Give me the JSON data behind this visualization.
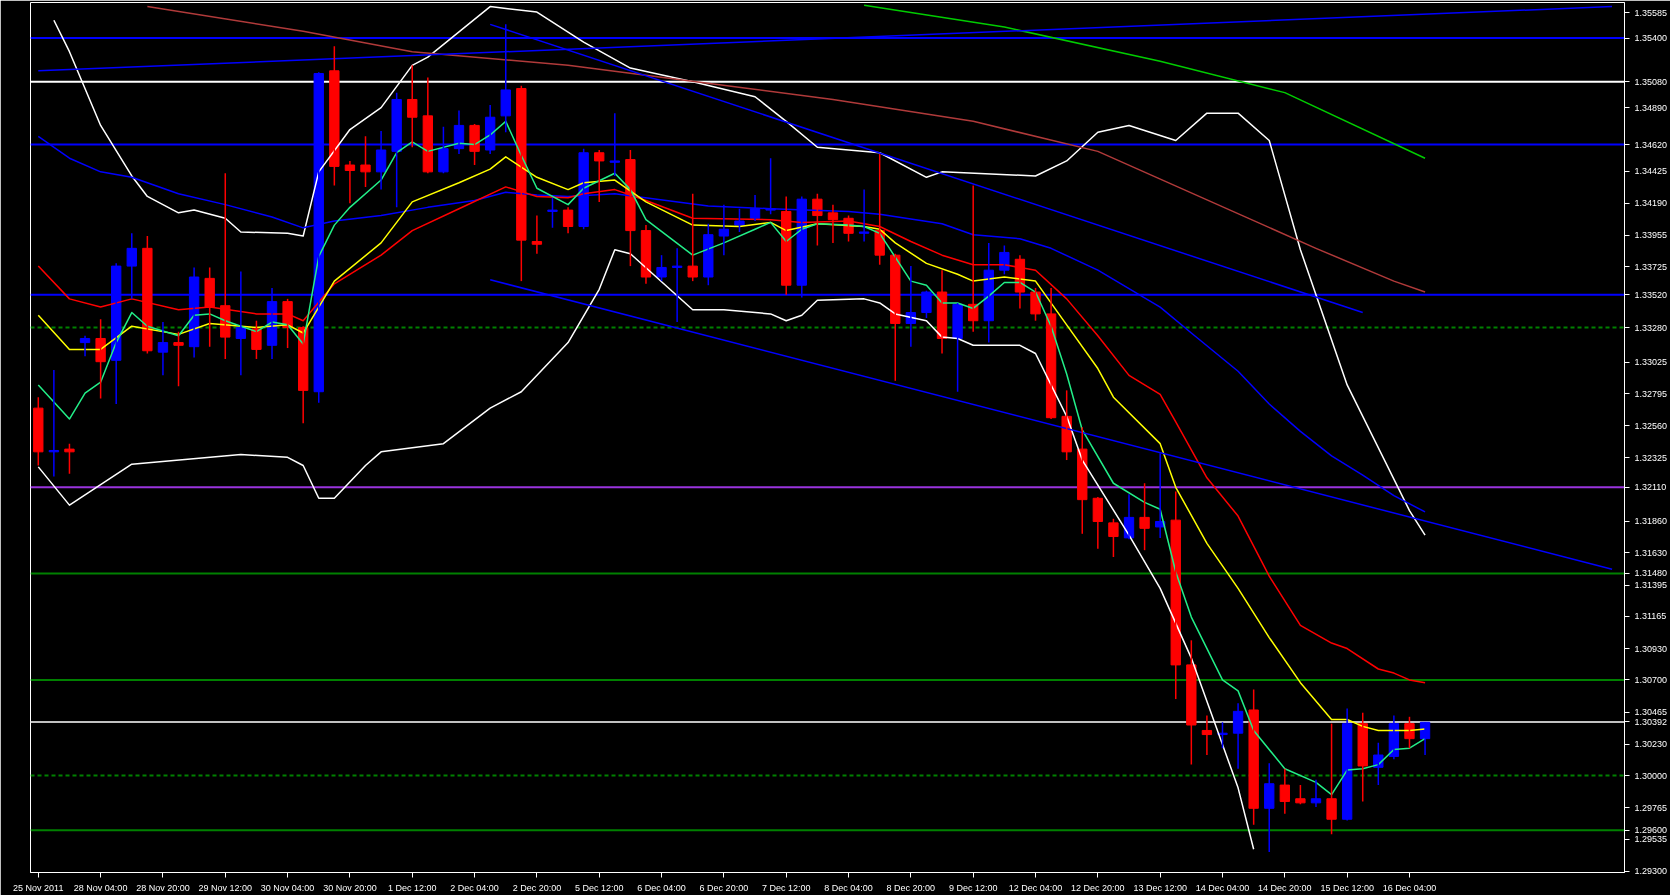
{
  "chart_data": {
    "type": "candlestick",
    "categories": [
      "25 Nov 2011",
      null,
      null,
      null,
      "28 Nov 04:00",
      null,
      null,
      null,
      "28 Nov 20:00",
      null,
      null,
      null,
      "29 Nov 12:00",
      null,
      null,
      null,
      "30 Nov 04:00",
      null,
      null,
      null,
      "30 Nov 20:00",
      null,
      null,
      null,
      "1 Dec 12:00",
      null,
      null,
      null,
      "2 Dec 04:00",
      null,
      null,
      null,
      "2 Dec 20:00",
      null,
      null,
      null,
      "5 Dec 12:00",
      null,
      null,
      null,
      "6 Dec 04:00",
      null,
      null,
      null,
      "6 Dec 20:00",
      null,
      null,
      null,
      "7 Dec 12:00",
      null,
      null,
      null,
      "8 Dec 04:00",
      null,
      null,
      null,
      "8 Dec 20:00",
      null,
      null,
      null,
      "9 Dec 12:00",
      null,
      null,
      null,
      "12 Dec 04:00",
      null,
      null,
      null,
      "12 Dec 20:00",
      null,
      null,
      null,
      "13 Dec 12:00",
      null,
      null,
      null,
      "14 Dec 04:00",
      null,
      null,
      null,
      "14 Dec 20:00",
      null,
      null,
      null,
      "15 Dec 12:00",
      null,
      null,
      null,
      "16 Dec 04:00",
      null,
      null,
      null,
      null,
      null,
      null,
      null,
      null,
      null,
      null,
      null,
      null,
      null
    ],
    "colors": [
      "#ff0000",
      "#0000ff",
      "#ff0000",
      "#0000ff",
      "#ff0000",
      "#0000ff",
      "#0000ff",
      "#ff0000",
      "#0000ff",
      "#ff0000",
      "#0000ff",
      "#ff0000",
      "#ff0000",
      "#0000ff",
      "#ff0000",
      "#0000ff",
      "#ff0000",
      "#ff0000",
      "#0000ff",
      "#ff0000",
      "#ff0000",
      "#ff0000",
      "#0000ff",
      "#0000ff",
      "#ff0000",
      "#ff0000",
      "#0000ff",
      "#0000ff",
      "#ff0000",
      "#0000ff",
      "#0000ff",
      "#ff0000",
      "#ff0000",
      "#0000ff",
      "#ff0000",
      "#0000ff",
      "#ff0000",
      "#0000ff",
      "#ff0000",
      "#ff0000",
      "#0000ff",
      "#0000ff",
      "#ff0000",
      "#0000ff",
      "#0000ff",
      "#0000ff",
      "#0000ff",
      "#0000ff",
      "#ff0000",
      "#0000ff",
      "#ff0000",
      "#ff0000",
      "#ff0000",
      "#0000ff",
      "#ff0000",
      "#ff0000",
      "#0000ff",
      "#0000ff",
      "#ff0000",
      "#0000ff",
      "#ff0000",
      "#0000ff",
      "#0000ff",
      "#ff0000",
      "#ff0000",
      "#ff0000",
      "#ff0000",
      "#ff0000",
      "#ff0000",
      "#ff0000",
      "#0000ff",
      "#ff0000",
      "#0000ff",
      "#ff0000",
      "#ff0000",
      "#ff0000",
      "#0000ff",
      "#0000ff",
      "#ff0000",
      "#0000ff",
      "#ff0000",
      "#ff0000",
      "#0000ff",
      "#ff0000",
      "#0000ff",
      "#ff0000",
      "#0000ff",
      "#0000ff",
      "#ff0000",
      "#0000ff",
      null,
      null,
      null,
      null,
      null,
      null,
      null,
      null,
      null,
      null,
      null,
      null
    ],
    "ohlc": [
      [
        1.3269,
        1.3277,
        1.3227,
        1.3237
      ],
      [
        1.3237,
        1.3297,
        1.3219,
        1.3238
      ],
      [
        1.3239,
        1.3243,
        1.3221,
        1.3237
      ],
      [
        1.3317,
        1.3322,
        1.3307,
        1.332
      ],
      [
        1.332,
        1.3334,
        1.3276,
        1.3303
      ],
      [
        1.3304,
        1.3375,
        1.3272,
        1.3373
      ],
      [
        1.3373,
        1.3397,
        1.3349,
        1.3386
      ],
      [
        1.3386,
        1.3395,
        1.3309,
        1.3311
      ],
      [
        1.331,
        1.3332,
        1.3293,
        1.3317
      ],
      [
        1.3317,
        1.3325,
        1.3285,
        1.3315
      ],
      [
        1.3314,
        1.3372,
        1.3306,
        1.3365
      ],
      [
        1.3364,
        1.3372,
        1.3314,
        1.3343
      ],
      [
        1.3344,
        1.3441,
        1.3305,
        1.3321
      ],
      [
        1.332,
        1.3369,
        1.3293,
        1.3328
      ],
      [
        1.3327,
        1.3333,
        1.3305,
        1.3312
      ],
      [
        1.3315,
        1.3357,
        1.3305,
        1.3347
      ],
      [
        1.3347,
        1.3349,
        1.3313,
        1.3328
      ],
      [
        1.3328,
        1.3329,
        1.3258,
        1.3282
      ],
      [
        1.3281,
        1.3515,
        1.3273,
        1.3514
      ],
      [
        1.3516,
        1.3534,
        1.3432,
        1.3446
      ],
      [
        1.3447,
        1.345,
        1.3419,
        1.3443
      ],
      [
        1.3447,
        1.3468,
        1.3431,
        1.3442
      ],
      [
        1.3442,
        1.3472,
        1.3429,
        1.3458
      ],
      [
        1.3457,
        1.35,
        1.3416,
        1.3495
      ],
      [
        1.3495,
        1.352,
        1.346,
        1.3482
      ],
      [
        1.3483,
        1.3511,
        1.3441,
        1.3442
      ],
      [
        1.3442,
        1.3475,
        1.3441,
        1.3459
      ],
      [
        1.3459,
        1.3487,
        1.3455,
        1.3476
      ],
      [
        1.3476,
        1.3477,
        1.3447,
        1.3457
      ],
      [
        1.3458,
        1.3491,
        1.3455,
        1.3482
      ],
      [
        1.3483,
        1.355,
        1.3471,
        1.3502
      ],
      [
        1.3503,
        1.3505,
        1.3362,
        1.3392
      ],
      [
        1.3391,
        1.341,
        1.3382,
        1.3389
      ],
      [
        1.3413,
        1.3423,
        1.3401,
        1.3414
      ],
      [
        1.3414,
        1.3416,
        1.3397,
        1.3402
      ],
      [
        1.3402,
        1.3459,
        1.34,
        1.3456
      ],
      [
        1.3456,
        1.3458,
        1.342,
        1.345
      ],
      [
        1.3449,
        1.3485,
        1.3439,
        1.345
      ],
      [
        1.3451,
        1.3458,
        1.3373,
        1.3399
      ],
      [
        1.3399,
        1.3403,
        1.336,
        1.3365
      ],
      [
        1.3365,
        1.3381,
        1.3362,
        1.3372
      ],
      [
        1.3372,
        1.3386,
        1.3332,
        1.3373
      ],
      [
        1.3373,
        1.3426,
        1.3362,
        1.3365
      ],
      [
        1.3365,
        1.3404,
        1.3359,
        1.3396
      ],
      [
        1.3395,
        1.3418,
        1.3381,
        1.34
      ],
      [
        1.3403,
        1.3415,
        1.3398,
        1.3406
      ],
      [
        1.3408,
        1.3425,
        1.3406,
        1.3415
      ],
      [
        1.3414,
        1.3452,
        1.3411,
        1.3415
      ],
      [
        1.3413,
        1.3424,
        1.3352,
        1.3359
      ],
      [
        1.3359,
        1.3424,
        1.335,
        1.3422
      ],
      [
        1.3422,
        1.3426,
        1.3388,
        1.341
      ],
      [
        1.3412,
        1.3418,
        1.339,
        1.3407
      ],
      [
        1.3408,
        1.341,
        1.3391,
        1.3397
      ],
      [
        1.3397,
        1.3429,
        1.3391,
        1.3398
      ],
      [
        1.3399,
        1.3455,
        1.3374,
        1.3381
      ],
      [
        1.3381,
        1.3382,
        1.3289,
        1.3331
      ],
      [
        1.3331,
        1.3373,
        1.3314,
        1.3339
      ],
      [
        1.3339,
        1.3355,
        1.3335,
        1.3354
      ],
      [
        1.3354,
        1.337,
        1.3309,
        1.332
      ],
      [
        1.332,
        1.3346,
        1.3281,
        1.3345
      ],
      [
        1.3345,
        1.3432,
        1.3325,
        1.3333
      ],
      [
        1.3333,
        1.339,
        1.3317,
        1.337
      ],
      [
        1.337,
        1.3388,
        1.3367,
        1.3383
      ],
      [
        1.3378,
        1.3381,
        1.3342,
        1.3354
      ],
      [
        1.3354,
        1.3357,
        1.3333,
        1.3338
      ],
      [
        1.3338,
        1.3357,
        1.3261,
        1.3262
      ],
      [
        1.3263,
        1.3282,
        1.3231,
        1.3237
      ],
      [
        1.3239,
        1.3255,
        1.3177,
        1.3202
      ],
      [
        1.3203,
        1.3204,
        1.3166,
        1.3186
      ],
      [
        1.3185,
        1.3188,
        1.316,
        1.3175
      ],
      [
        1.3174,
        1.3206,
        1.3173,
        1.3189
      ],
      [
        1.3189,
        1.3214,
        1.3165,
        1.3181
      ],
      [
        1.3182,
        1.3236,
        1.3174,
        1.3186
      ],
      [
        1.3187,
        1.3208,
        1.3056,
        1.3081
      ],
      [
        1.3081,
        1.3099,
        1.3008,
        1.3037
      ],
      [
        1.3033,
        1.3044,
        1.3015,
        1.303
      ],
      [
        1.303,
        1.3039,
        1.302,
        1.3031
      ],
      [
        1.3031,
        1.3053,
        1.3005,
        1.3047
      ],
      [
        1.3048,
        1.3063,
        1.2964,
        1.2976
      ],
      [
        1.2976,
        1.3009,
        1.2944,
        1.2994
      ],
      [
        1.2993,
        1.3005,
        1.2972,
        1.2981
      ],
      [
        1.2983,
        1.2993,
        1.2979,
        1.298
      ],
      [
        1.298,
        1.2997,
        1.2977,
        1.2983
      ],
      [
        1.2983,
        1.3038,
        1.2957,
        1.2968
      ],
      [
        1.2968,
        1.3049,
        1.2967,
        1.3038
      ],
      [
        1.3038,
        1.3046,
        1.2981,
        1.3007
      ],
      [
        1.3006,
        1.3024,
        1.2993,
        1.3015
      ],
      [
        1.3014,
        1.3044,
        1.3012,
        1.3038
      ],
      [
        1.3038,
        1.3043,
        1.302,
        1.3027
      ],
      [
        1.3027,
        1.3039,
        1.3015,
        1.3039
      ],
      null,
      null,
      null,
      null,
      null,
      null,
      null,
      null,
      null,
      null,
      null,
      null
    ],
    "series": [
      {
        "type": "line",
        "color": "#ffffff",
        "values": [
          null,
          1.3553,
          1.353,
          null,
          1.3476,
          null,
          1.3439,
          1.3424,
          null,
          1.3412,
          1.3414,
          null,
          1.3408,
          1.3398,
          null,
          null,
          1.3397,
          1.3395,
          1.3442,
          null,
          1.3473,
          null,
          1.3489,
          null,
          1.352,
          1.3526,
          null,
          null,
          null,
          1.3563,
          null,
          null,
          1.3559,
          null,
          null,
          1.3537,
          null,
          null,
          1.3518,
          null,
          null,
          null,
          1.3508,
          null,
          null,
          null,
          1.3497,
          null,
          1.3479,
          null,
          1.346,
          null,
          1.3458,
          null,
          1.3456,
          null,
          null,
          1.3438,
          1.3442,
          null,
          null,
          null,
          null,
          null,
          1.3439,
          null,
          1.345,
          null,
          1.3471,
          null,
          1.3476,
          null,
          null,
          1.3465,
          null,
          1.3485,
          null,
          1.3485,
          null,
          1.3465,
          null,
          1.3385,
          null,
          null,
          1.3286,
          null,
          null,
          null,
          1.3194,
          1.3176,
          null,
          null,
          null,
          null,
          null,
          null,
          null,
          null,
          null,
          null,
          null,
          null
        ]
      },
      {
        "type": "line",
        "color": "#ffffff",
        "values": [
          1.3226,
          null,
          1.3198,
          null,
          null,
          null,
          1.3228,
          null,
          null,
          null,
          null,
          null,
          null,
          1.3235,
          null,
          null,
          1.3233,
          1.3227,
          1.3203,
          1.3203,
          null,
          1.3227,
          1.3237,
          null,
          null,
          null,
          1.3243,
          null,
          null,
          1.3269,
          null,
          1.3281,
          null,
          null,
          1.3317,
          null,
          1.3356,
          1.3385,
          1.3382,
          null,
          null,
          null,
          1.3341,
          null,
          1.3341,
          null,
          null,
          1.3338,
          1.3333,
          1.3337,
          1.3348,
          null,
          null,
          1.3349,
          1.3346,
          1.3338,
          null,
          1.3333,
          1.3321,
          1.332,
          1.3315,
          null,
          null,
          1.3315,
          1.3309,
          null,
          1.3263,
          1.3231,
          null,
          null,
          1.3176,
          null,
          1.3137,
          null,
          1.3086,
          null,
          null,
          1.2991,
          1.2946,
          null,
          null,
          null,
          null,
          null,
          null,
          null,
          null,
          null,
          null,
          null,
          null,
          null,
          null,
          null,
          null,
          null,
          null,
          null,
          null,
          null,
          null,
          null
        ]
      },
      {
        "type": "line",
        "color": "#b03a3a",
        "values": [
          null,
          null,
          null,
          null,
          null,
          null,
          null,
          1.3563,
          null,
          null,
          null,
          null,
          null,
          null,
          null,
          null,
          null,
          1.3545,
          null,
          null,
          null,
          null,
          null,
          null,
          1.353,
          null,
          null,
          null,
          null,
          null,
          null,
          null,
          null,
          null,
          1.352,
          null,
          null,
          null,
          null,
          null,
          null,
          null,
          null,
          null,
          null,
          null,
          null,
          null,
          null,
          null,
          null,
          1.3495,
          null,
          null,
          null,
          null,
          null,
          null,
          null,
          null,
          1.3479,
          null,
          null,
          null,
          null,
          null,
          null,
          null,
          1.3457,
          null,
          null,
          null,
          null,
          null,
          null,
          null,
          null,
          null,
          null,
          null,
          null,
          null,
          1.3386,
          null,
          null,
          null,
          null,
          1.3362,
          null,
          1.3354,
          null,
          null,
          null,
          null,
          null,
          null,
          null,
          null,
          null,
          null,
          null,
          null
        ]
      },
      {
        "type": "line",
        "color": "#00cc00",
        "values": [
          null,
          null,
          null,
          null,
          null,
          null,
          null,
          null,
          null,
          null,
          null,
          null,
          null,
          null,
          null,
          null,
          null,
          null,
          null,
          null,
          null,
          null,
          null,
          null,
          null,
          null,
          null,
          null,
          null,
          null,
          null,
          null,
          null,
          null,
          null,
          null,
          null,
          null,
          null,
          null,
          null,
          null,
          null,
          null,
          null,
          null,
          null,
          null,
          null,
          null,
          null,
          null,
          null,
          1.3564,
          null,
          null,
          null,
          null,
          null,
          null,
          null,
          null,
          1.3548,
          null,
          null,
          null,
          null,
          null,
          null,
          null,
          null,
          null,
          1.3523,
          null,
          null,
          null,
          null,
          null,
          null,
          null,
          1.35,
          null,
          null,
          null,
          null,
          null,
          null,
          null,
          null,
          1.3452,
          null,
          null,
          null,
          null,
          null,
          null,
          null,
          null,
          null,
          null,
          null,
          null
        ]
      },
      {
        "type": "line",
        "color": "#0000ff",
        "values": [
          1.3468,
          null,
          1.3452,
          null,
          1.3442,
          null,
          1.3438,
          null,
          null,
          1.3426,
          null,
          null,
          1.3418,
          null,
          null,
          1.3409,
          null,
          1.3401,
          null,
          1.3406,
          null,
          null,
          1.341,
          null,
          null,
          1.3416,
          null,
          null,
          1.3421,
          null,
          1.3427,
          null,
          1.3425,
          null,
          1.3424,
          null,
          null,
          1.3426,
          null,
          null,
          null,
          null,
          null,
          1.3417,
          null,
          null,
          null,
          1.3415,
          null,
          null,
          null,
          null,
          1.3413,
          null,
          1.3411,
          null,
          null,
          null,
          1.3404,
          null,
          1.3396,
          null,
          null,
          1.3393,
          null,
          1.3386,
          null,
          null,
          1.337,
          null,
          null,
          null,
          1.3343,
          null,
          1.3324,
          null,
          null,
          1.3296,
          null,
          1.3272,
          null,
          1.3252,
          null,
          1.3234,
          null,
          1.322,
          null,
          1.3205,
          null,
          1.3193,
          null,
          null,
          null,
          null,
          null,
          null,
          null,
          null,
          null,
          null,
          null,
          null
        ]
      },
      {
        "type": "line",
        "color": "#ff0000",
        "values": [
          1.3373,
          null,
          1.3349,
          null,
          1.3343,
          null,
          1.3349,
          null,
          null,
          1.3341,
          null,
          1.3343,
          null,
          null,
          1.3338,
          null,
          1.3338,
          1.3333,
          null,
          1.336,
          null,
          null,
          1.3381,
          null,
          1.3399,
          null,
          null,
          1.3415,
          null,
          null,
          1.3431,
          null,
          1.3424,
          null,
          1.3423,
          1.3426,
          null,
          1.3429,
          null,
          1.3421,
          null,
          null,
          1.3408,
          null,
          null,
          null,
          null,
          1.3407,
          null,
          1.3405,
          null,
          null,
          1.3406,
          null,
          1.3402,
          null,
          1.3391,
          null,
          1.3381,
          null,
          1.3374,
          null,
          1.3374,
          null,
          1.337,
          null,
          1.3349,
          null,
          1.3322,
          null,
          1.3293,
          null,
          1.3279,
          1.3259,
          null,
          1.3218,
          null,
          1.319,
          null,
          1.3146,
          null,
          1.311,
          null,
          1.3097,
          1.3093,
          null,
          1.3078,
          1.3075,
          1.307,
          1.3068,
          null,
          null,
          null,
          null,
          null,
          null,
          null,
          null,
          null,
          null,
          null,
          null
        ]
      },
      {
        "type": "line",
        "color": "#ffff00",
        "values": [
          1.3337,
          null,
          1.3312,
          null,
          1.3312,
          null,
          1.3329,
          null,
          null,
          1.3323,
          null,
          1.3331,
          null,
          null,
          1.3328,
          null,
          1.333,
          1.3324,
          null,
          1.3362,
          null,
          null,
          1.339,
          null,
          1.342,
          null,
          null,
          1.3434,
          null,
          1.3444,
          1.3453,
          null,
          1.3438,
          null,
          1.3429,
          1.3434,
          null,
          1.3436,
          null,
          1.342,
          null,
          null,
          1.3403,
          null,
          null,
          1.3402,
          null,
          1.3405,
          1.3399,
          null,
          1.3404,
          null,
          null,
          1.3402,
          1.34,
          1.339,
          null,
          1.3375,
          null,
          1.3367,
          1.3362,
          null,
          1.3365,
          null,
          1.3362,
          null,
          1.333,
          null,
          1.3298,
          1.3277,
          null,
          null,
          1.3243,
          1.3211,
          null,
          1.317,
          null,
          1.3137,
          null,
          1.3101,
          null,
          1.3068,
          null,
          1.3041,
          1.3041,
          1.3036,
          1.3033,
          null,
          1.3033,
          1.3034,
          null,
          null,
          null,
          null,
          null,
          null,
          null,
          null,
          null,
          null,
          null,
          null
        ]
      },
      {
        "type": "line",
        "color": "#22ee88",
        "values": [
          1.3286,
          null,
          1.3261,
          1.328,
          1.3288,
          1.3317,
          1.3339,
          1.3329,
          null,
          1.3322,
          1.3337,
          1.3338,
          1.3333,
          null,
          1.3325,
          1.3332,
          1.333,
          1.3316,
          1.338,
          1.3403,
          1.3416,
          null,
          1.3436,
          1.3456,
          1.3464,
          1.3457,
          null,
          1.3463,
          1.3462,
          1.3469,
          1.3479,
          1.3454,
          1.343,
          null,
          1.3418,
          1.343,
          null,
          1.3441,
          1.3429,
          1.3407,
          null,
          null,
          1.3381,
          null,
          1.339,
          null,
          1.34,
          1.3405,
          1.3391,
          1.34,
          1.3404,
          null,
          1.3403,
          1.3402,
          1.3397,
          null,
          1.3362,
          1.3359,
          1.3346,
          1.3346,
          1.3342,
          1.3351,
          1.3361,
          1.3361,
          1.3354,
          1.3329,
          1.3294,
          1.3253,
          null,
          1.3214,
          null,
          1.32,
          1.3195,
          1.3149,
          1.3116,
          null,
          1.307,
          1.3062,
          1.3033,
          null,
          1.3005,
          null,
          1.2995,
          1.2986,
          1.3004,
          1.3005,
          1.3008,
          1.3019,
          1.302,
          1.3027,
          null,
          null,
          null,
          null,
          null,
          null,
          null,
          null,
          null,
          null,
          null,
          null
        ]
      },
      {
        "type": "line",
        "color": "#0000ff",
        "values": [
          1.3516,
          null,
          null,
          null,
          null,
          null,
          null,
          null,
          null,
          null,
          null,
          null,
          null,
          null,
          null,
          null,
          null,
          null,
          null,
          null,
          null,
          null,
          null,
          null,
          null,
          null,
          null,
          null,
          null,
          null,
          null,
          null,
          null,
          null,
          null,
          null,
          null,
          null,
          null,
          null,
          null,
          null,
          null,
          null,
          null,
          null,
          null,
          null,
          null,
          null,
          null,
          null,
          null,
          null,
          null,
          null,
          null,
          null,
          null,
          null,
          null,
          null,
          null,
          null,
          null,
          null,
          null,
          null,
          null,
          null,
          null,
          null,
          null,
          null,
          null,
          null,
          null,
          null,
          null,
          null,
          null,
          null,
          null,
          null,
          null,
          null,
          null,
          null,
          null,
          null,
          null,
          null,
          null,
          null,
          null,
          null,
          null,
          null,
          null,
          null,
          null,
          1.3563
        ]
      },
      {
        "type": "line",
        "color": "#0000ff",
        "values": [
          null,
          null,
          null,
          null,
          null,
          null,
          null,
          null,
          null,
          null,
          null,
          null,
          null,
          null,
          null,
          null,
          null,
          null,
          null,
          null,
          null,
          null,
          null,
          null,
          null,
          null,
          null,
          null,
          null,
          1.355,
          null,
          null,
          null,
          null,
          null,
          null,
          null,
          null,
          null,
          null,
          null,
          null,
          null,
          null,
          null,
          null,
          null,
          null,
          null,
          null,
          null,
          null,
          null,
          null,
          null,
          null,
          null,
          null,
          null,
          null,
          null,
          null,
          null,
          null,
          null,
          null,
          null,
          null,
          null,
          null,
          null,
          null,
          null,
          null,
          null,
          null,
          null,
          null,
          null,
          null,
          null,
          null,
          null,
          null,
          null,
          1.3339,
          null,
          null,
          null,
          null,
          null,
          null,
          null,
          null,
          null,
          null,
          null,
          null,
          null,
          null,
          null,
          null
        ]
      },
      {
        "type": "line",
        "color": "#0000ff",
        "values": [
          null,
          null,
          null,
          null,
          null,
          null,
          null,
          null,
          null,
          null,
          null,
          null,
          null,
          null,
          null,
          null,
          null,
          null,
          null,
          null,
          null,
          null,
          null,
          null,
          null,
          null,
          null,
          null,
          null,
          1.3363,
          null,
          null,
          null,
          null,
          null,
          null,
          null,
          null,
          null,
          null,
          null,
          null,
          null,
          null,
          null,
          null,
          null,
          null,
          null,
          null,
          null,
          null,
          null,
          null,
          null,
          null,
          null,
          null,
          null,
          null,
          null,
          null,
          null,
          null,
          null,
          null,
          null,
          null,
          null,
          null,
          null,
          null,
          null,
          null,
          null,
          null,
          null,
          null,
          null,
          null,
          null,
          null,
          null,
          null,
          null,
          null,
          null,
          null,
          null,
          null,
          null,
          null,
          null,
          null,
          null,
          null,
          null,
          null,
          null,
          null,
          null,
          1.3151
        ]
      }
    ],
    "ref_lines": [
      {
        "axis": "y",
        "value": 1.354,
        "label": "1.35400",
        "color": "#0000ff"
      },
      {
        "axis": "y",
        "value": 1.3508,
        "label": "1.35080",
        "color": "#ffffff"
      },
      {
        "axis": "y",
        "value": 1.3462,
        "label": "1.34620",
        "color": "#0000ff"
      },
      {
        "axis": "y",
        "value": 1.3352,
        "label": "1.33520",
        "color": "#0000ff"
      },
      {
        "axis": "y",
        "value": 1.3328,
        "label": "1.33280",
        "color": "#008000",
        "line_style": "dashed"
      },
      {
        "axis": "y",
        "value": 1.3211,
        "label": "1.32110",
        "color": "#9933dd"
      },
      {
        "axis": "y",
        "value": 1.3148,
        "label": "1.31480",
        "color": "#008000"
      },
      {
        "axis": "y",
        "value": 1.307,
        "label": "1.30700",
        "color": "#008000"
      },
      {
        "axis": "y",
        "value": 1.30392,
        "label": "1.30392",
        "color": "#c0c0c0"
      },
      {
        "axis": "y",
        "value": 1.3,
        "label": "1.30000",
        "color": "#008000",
        "line_style": "dashed"
      },
      {
        "axis": "y",
        "value": 1.296,
        "label": "1.29600",
        "color": "#008000"
      }
    ],
    "ylim": [
      1.2929,
      1.3566
    ],
    "yticks": [
      {
        "value": 1.35585,
        "label": "1.35585"
      },
      {
        "value": 1.3489,
        "label": "1.34890"
      },
      {
        "value": 1.34425,
        "label": "1.34425"
      },
      {
        "value": 1.3419,
        "label": "1.34190"
      },
      {
        "value": 1.33955,
        "label": "1.33955"
      },
      {
        "value": 1.33725,
        "label": "1.33725"
      },
      {
        "value": 1.33025,
        "label": "1.33025"
      },
      {
        "value": 1.32795,
        "label": "1.32795"
      },
      {
        "value": 1.3256,
        "label": "1.32560"
      },
      {
        "value": 1.32325,
        "label": "1.32325"
      },
      {
        "value": 1.3186,
        "label": "1.31860"
      },
      {
        "value": 1.3163,
        "label": "1.31630"
      },
      {
        "value": 1.31395,
        "label": "1.31395"
      },
      {
        "value": 1.31165,
        "label": "1.31165"
      },
      {
        "value": 1.3093,
        "label": "1.30930"
      },
      {
        "value": 1.30465,
        "label": "1.30465"
      },
      {
        "value": 1.3023,
        "label": "1.30230"
      },
      {
        "value": 1.29765,
        "label": "1.29765"
      },
      {
        "value": 1.29535,
        "label": "1.29535"
      },
      {
        "value": 1.293,
        "label": "1.29300"
      }
    ]
  }
}
